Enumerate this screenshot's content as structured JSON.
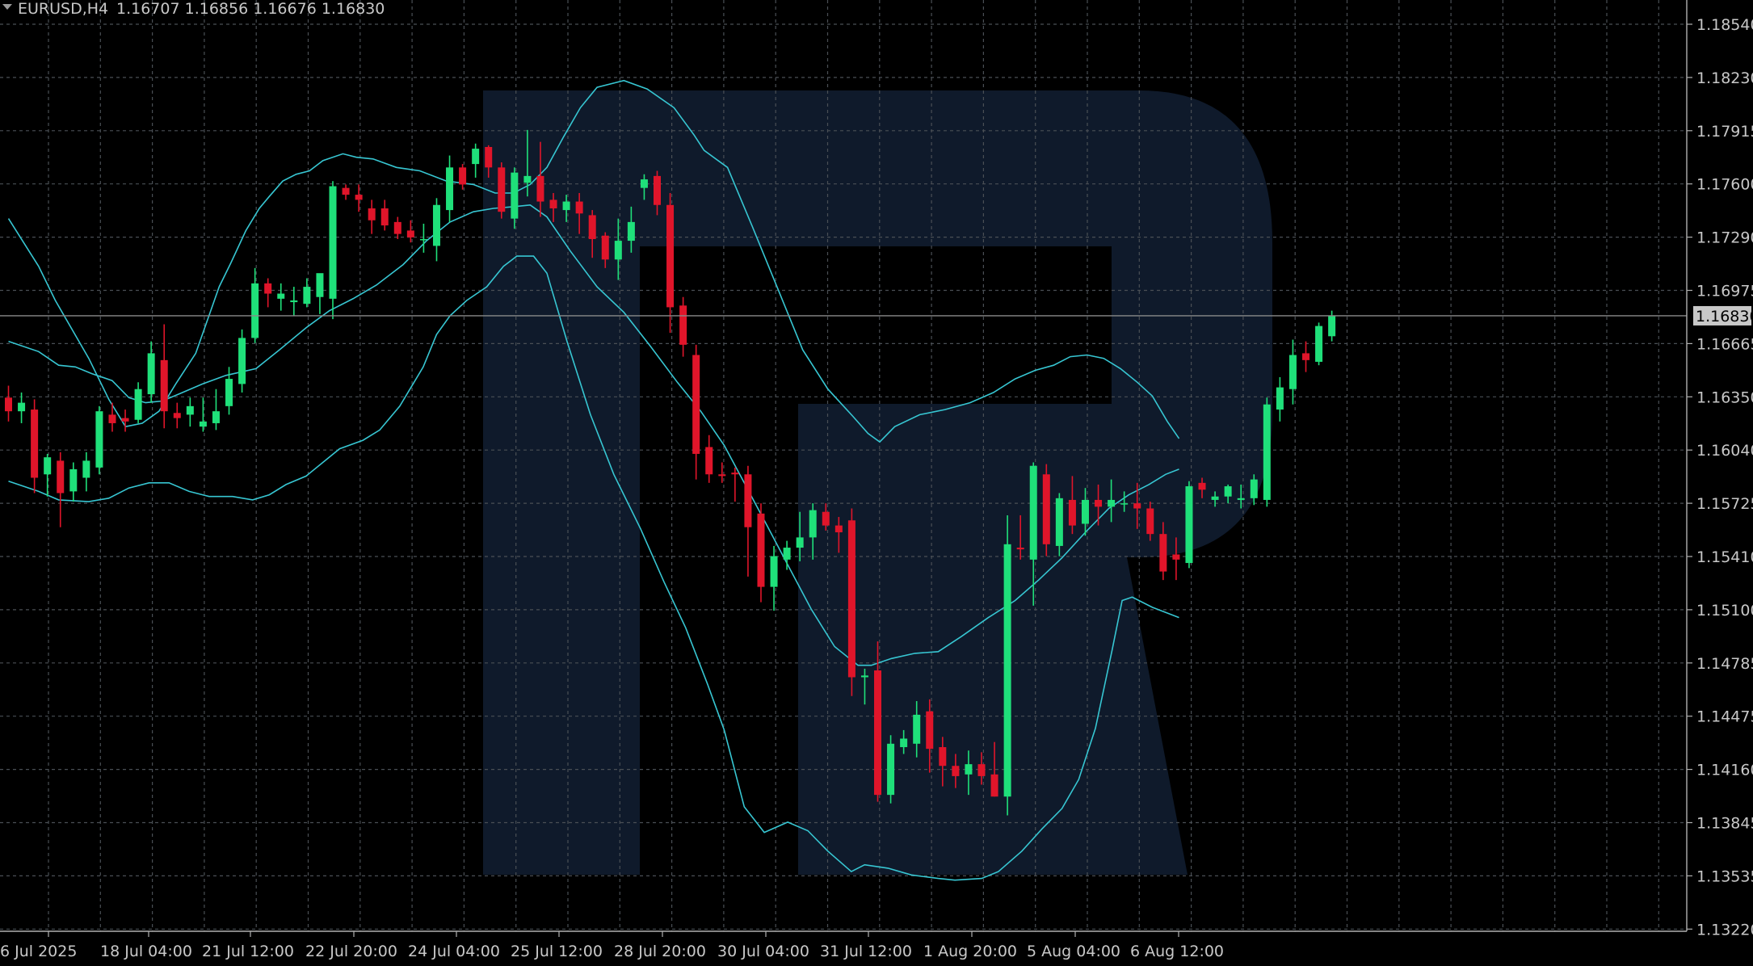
{
  "header": {
    "symbol": "EURUSD,H4",
    "ohlc": "1.16707 1.16856 1.16676 1.16830"
  },
  "colors": {
    "background": "#000000",
    "grid": "#4a4f55",
    "bull": "#1fe07a",
    "bear": "#e0152a",
    "bands": "#37c6d2",
    "watermark": "#0f1a2b",
    "axis_text": "#c8c8c8",
    "current_line": "#8a8a8a",
    "current_tag": "#c8c8c8"
  },
  "icons": {
    "header": "triangle-down-icon",
    "watermark": "broker-logo-watermark"
  },
  "chart_data": {
    "type": "candlestick",
    "symbol": "EURUSD",
    "timeframe": "H4",
    "ylim": [
      1.1322,
      1.1854
    ],
    "y_ticks": [
      "1.18540",
      "1.18230",
      "1.17915",
      "1.17600",
      "1.17290",
      "1.16975",
      "1.16665",
      "1.16350",
      "1.16040",
      "1.15725",
      "1.15410",
      "1.15100",
      "1.14785",
      "1.14475",
      "1.14160",
      "1.13845",
      "1.13535",
      "1.13220"
    ],
    "x_ticks": [
      "6 Jul 2025",
      "18 Jul 04:00",
      "21 Jul 12:00",
      "22 Jul 20:00",
      "24 Jul 04:00",
      "25 Jul 12:00",
      "28 Jul 20:00",
      "30 Jul 04:00",
      "31 Jul 12:00",
      "1 Aug 20:00",
      "5 Aug 04:00",
      "6 Aug 12:00"
    ],
    "current_price": "1.16830",
    "candles": [
      [
        1.1635,
        1.1642,
        1.1621,
        1.1627
      ],
      [
        1.1627,
        1.1638,
        1.162,
        1.1632
      ],
      [
        1.1628,
        1.1634,
        1.1579,
        1.1588
      ],
      [
        1.159,
        1.1602,
        1.1577,
        1.16
      ],
      [
        1.1598,
        1.1603,
        1.1559,
        1.1579
      ],
      [
        1.158,
        1.1597,
        1.1574,
        1.1593
      ],
      [
        1.1588,
        1.1603,
        1.158,
        1.1598
      ],
      [
        1.1594,
        1.163,
        1.159,
        1.1627
      ],
      [
        1.1625,
        1.1632,
        1.1615,
        1.162
      ],
      [
        1.1623,
        1.1628,
        1.1615,
        1.1621
      ],
      [
        1.1622,
        1.1644,
        1.162,
        1.164
      ],
      [
        1.1637,
        1.1668,
        1.1632,
        1.1661
      ],
      [
        1.1657,
        1.1678,
        1.1617,
        1.1627
      ],
      [
        1.1626,
        1.1632,
        1.1617,
        1.1623
      ],
      [
        1.1625,
        1.1635,
        1.1618,
        1.163
      ],
      [
        1.1618,
        1.1635,
        1.1615,
        1.1621
      ],
      [
        1.162,
        1.164,
        1.1616,
        1.1627
      ],
      [
        1.163,
        1.1653,
        1.1625,
        1.1646
      ],
      [
        1.1643,
        1.1675,
        1.1638,
        1.167
      ],
      [
        1.167,
        1.1711,
        1.1667,
        1.1702
      ],
      [
        1.1702,
        1.1705,
        1.1688,
        1.1696
      ],
      [
        1.1693,
        1.1702,
        1.1686,
        1.1696
      ],
      [
        1.1691,
        1.17,
        1.1683,
        1.1692
      ],
      [
        1.169,
        1.1705,
        1.1688,
        1.17
      ],
      [
        1.1694,
        1.1704,
        1.1684,
        1.1708
      ],
      [
        1.1693,
        1.1762,
        1.1681,
        1.1759
      ],
      [
        1.1758,
        1.176,
        1.1751,
        1.1754
      ],
      [
        1.1754,
        1.176,
        1.1744,
        1.1751
      ],
      [
        1.1746,
        1.1751,
        1.1731,
        1.1739
      ],
      [
        1.1746,
        1.1751,
        1.1733,
        1.1736
      ],
      [
        1.1738,
        1.1741,
        1.1728,
        1.1731
      ],
      [
        1.1733,
        1.1739,
        1.1726,
        1.1729
      ],
      [
        1.1728,
        1.1737,
        1.172,
        1.1728
      ],
      [
        1.1724,
        1.1752,
        1.1715,
        1.1748
      ],
      [
        1.1745,
        1.1777,
        1.1738,
        1.177
      ],
      [
        1.177,
        1.1772,
        1.1757,
        1.176
      ],
      [
        1.1772,
        1.1784,
        1.1764,
        1.1781
      ],
      [
        1.1782,
        1.1783,
        1.1764,
        1.177
      ],
      [
        1.177,
        1.1773,
        1.174,
        1.1744
      ],
      [
        1.174,
        1.177,
        1.1734,
        1.1767
      ],
      [
        1.1761,
        1.1792,
        1.1753,
        1.1765
      ],
      [
        1.1765,
        1.1785,
        1.1741,
        1.175
      ],
      [
        1.1751,
        1.1755,
        1.1738,
        1.1746
      ],
      [
        1.1745,
        1.1754,
        1.1738,
        1.175
      ],
      [
        1.175,
        1.1755,
        1.1731,
        1.1743
      ],
      [
        1.1742,
        1.1745,
        1.1717,
        1.1728
      ],
      [
        1.173,
        1.1732,
        1.1711,
        1.1716
      ],
      [
        1.1716,
        1.174,
        1.1704,
        1.1727
      ],
      [
        1.1727,
        1.1747,
        1.172,
        1.1738
      ],
      [
        1.1758,
        1.1766,
        1.1751,
        1.1763
      ],
      [
        1.1765,
        1.1768,
        1.1742,
        1.1748
      ],
      [
        1.1748,
        1.1755,
        1.1673,
        1.1688
      ],
      [
        1.1689,
        1.1694,
        1.1659,
        1.1666
      ],
      [
        1.166,
        1.1666,
        1.1587,
        1.1602
      ],
      [
        1.1606,
        1.1613,
        1.1585,
        1.159
      ],
      [
        1.159,
        1.1597,
        1.1585,
        1.1589
      ],
      [
        1.1591,
        1.1594,
        1.1574,
        1.159
      ],
      [
        1.159,
        1.1595,
        1.153,
        1.1559
      ],
      [
        1.1567,
        1.1573,
        1.1515,
        1.1524
      ],
      [
        1.1524,
        1.1548,
        1.151,
        1.1542
      ],
      [
        1.154,
        1.1551,
        1.1534,
        1.1547
      ],
      [
        1.1547,
        1.1568,
        1.1539,
        1.1553
      ],
      [
        1.1553,
        1.1573,
        1.154,
        1.1569
      ],
      [
        1.1568,
        1.1573,
        1.1557,
        1.156
      ],
      [
        1.156,
        1.1565,
        1.1544,
        1.1556
      ],
      [
        1.1563,
        1.157,
        1.146,
        1.1471
      ],
      [
        1.1471,
        1.1476,
        1.1455,
        1.1472
      ],
      [
        1.1475,
        1.1492,
        1.1398,
        1.1402
      ],
      [
        1.1402,
        1.1437,
        1.1397,
        1.1432
      ],
      [
        1.143,
        1.144,
        1.1426,
        1.1435
      ],
      [
        1.1432,
        1.1457,
        1.1424,
        1.1449
      ],
      [
        1.1451,
        1.1458,
        1.1415,
        1.1429
      ],
      [
        1.143,
        1.1436,
        1.1407,
        1.1419
      ],
      [
        1.1419,
        1.1426,
        1.1406,
        1.1413
      ],
      [
        1.1414,
        1.1428,
        1.1402,
        1.142
      ],
      [
        1.142,
        1.1427,
        1.1408,
        1.1413
      ],
      [
        1.1414,
        1.1433,
        1.1401,
        1.1401
      ],
      [
        1.1401,
        1.1566,
        1.139,
        1.1549
      ],
      [
        1.1547,
        1.1566,
        1.154,
        1.1546
      ],
      [
        1.154,
        1.1597,
        1.1513,
        1.1595
      ],
      [
        1.159,
        1.1596,
        1.1542,
        1.1549
      ],
      [
        1.1548,
        1.1579,
        1.1542,
        1.1576
      ],
      [
        1.1575,
        1.1589,
        1.1555,
        1.156
      ],
      [
        1.1561,
        1.1582,
        1.1554,
        1.1575
      ],
      [
        1.1575,
        1.1584,
        1.156,
        1.1571
      ],
      [
        1.1571,
        1.1587,
        1.1562,
        1.1575
      ],
      [
        1.1573,
        1.158,
        1.1568,
        1.1573
      ],
      [
        1.1573,
        1.1585,
        1.1558,
        1.157
      ],
      [
        1.157,
        1.1574,
        1.1551,
        1.1555
      ],
      [
        1.1555,
        1.1562,
        1.1528,
        1.1533
      ],
      [
        1.1543,
        1.1553,
        1.1528,
        1.154
      ],
      [
        1.1538,
        1.1586,
        1.1535,
        1.1583
      ],
      [
        1.1585,
        1.1588,
        1.1576,
        1.1581
      ],
      [
        1.1575,
        1.158,
        1.1571,
        1.1577
      ],
      [
        1.1577,
        1.1584,
        1.1573,
        1.1583
      ],
      [
        1.1575,
        1.1584,
        1.157,
        1.1576
      ],
      [
        1.1576,
        1.159,
        1.1572,
        1.1587
      ],
      [
        1.1575,
        1.1635,
        1.1571,
        1.1631
      ],
      [
        1.1628,
        1.1647,
        1.1621,
        1.1641
      ],
      [
        1.164,
        1.1669,
        1.1631,
        1.166
      ],
      [
        1.1661,
        1.1668,
        1.165,
        1.1657
      ],
      [
        1.1656,
        1.1679,
        1.1654,
        1.1677
      ],
      [
        1.1671,
        1.1686,
        1.1668,
        1.1683
      ]
    ],
    "bands": {
      "upper": [
        [
          0,
          1.174
        ],
        [
          18,
          1.1712
        ],
        [
          28,
          1.1692
        ],
        [
          48,
          1.1658
        ],
        [
          60,
          1.1634
        ],
        [
          70,
          1.1618
        ],
        [
          80,
          1.162
        ],
        [
          90,
          1.1627
        ],
        [
          100,
          1.1643
        ],
        [
          112,
          1.1661
        ],
        [
          126,
          1.17
        ],
        [
          133,
          1.1714
        ],
        [
          142,
          1.1733
        ],
        [
          150,
          1.1746
        ],
        [
          156,
          1.1753
        ],
        [
          164,
          1.1762
        ],
        [
          172,
          1.1766
        ],
        [
          180,
          1.1768
        ],
        [
          188,
          1.1774
        ],
        [
          200,
          1.1778
        ],
        [
          208,
          1.1776
        ],
        [
          218,
          1.1775
        ],
        [
          232,
          1.177
        ],
        [
          246,
          1.1768
        ],
        [
          262,
          1.1762
        ],
        [
          278,
          1.176
        ],
        [
          291,
          1.1755
        ],
        [
          302,
          1.1755
        ],
        [
          312,
          1.176
        ],
        [
          322,
          1.177
        ],
        [
          332,
          1.1788
        ],
        [
          342,
          1.1805
        ],
        [
          352,
          1.1817
        ],
        [
          368,
          1.1821
        ],
        [
          382,
          1.1816
        ],
        [
          398,
          1.1805
        ],
        [
          410,
          1.1789
        ],
        [
          416,
          1.178
        ],
        [
          430,
          1.177
        ],
        [
          445,
          1.1735
        ],
        [
          460,
          1.1699
        ],
        [
          475,
          1.1663
        ],
        [
          490,
          1.164
        ],
        [
          505,
          1.1624
        ],
        [
          514,
          1.1614
        ],
        [
          521,
          1.1609
        ],
        [
          530,
          1.1618
        ],
        [
          545,
          1.1625
        ],
        [
          560,
          1.1628
        ],
        [
          575,
          1.1632
        ],
        [
          589,
          1.1638
        ],
        [
          602,
          1.1646
        ],
        [
          614,
          1.1651
        ],
        [
          625,
          1.1654
        ],
        [
          635,
          1.1659
        ],
        [
          645,
          1.166
        ],
        [
          655,
          1.1658
        ],
        [
          665,
          1.1652
        ],
        [
          675,
          1.1644
        ],
        [
          684,
          1.1636
        ],
        [
          693,
          1.1621
        ],
        [
          700,
          1.1611
        ]
      ],
      "middle": [
        [
          0,
          1.1668
        ],
        [
          18,
          1.1662
        ],
        [
          30,
          1.1654
        ],
        [
          40,
          1.1653
        ],
        [
          50,
          1.1649
        ],
        [
          62,
          1.1645
        ],
        [
          72,
          1.1635
        ],
        [
          82,
          1.1632
        ],
        [
          92,
          1.1633
        ],
        [
          104,
          1.1638
        ],
        [
          116,
          1.1643
        ],
        [
          130,
          1.1648
        ],
        [
          148,
          1.1652
        ],
        [
          162,
          1.1663
        ],
        [
          178,
          1.1676
        ],
        [
          192,
          1.1686
        ],
        [
          206,
          1.1693
        ],
        [
          220,
          1.1701
        ],
        [
          236,
          1.1713
        ],
        [
          250,
          1.1727
        ],
        [
          264,
          1.1738
        ],
        [
          278,
          1.1744
        ],
        [
          290,
          1.1746
        ],
        [
          302,
          1.1747
        ],
        [
          312,
          1.1748
        ],
        [
          322,
          1.1741
        ],
        [
          336,
          1.1721
        ],
        [
          352,
          1.17
        ],
        [
          368,
          1.1685
        ],
        [
          384,
          1.1665
        ],
        [
          400,
          1.1644
        ],
        [
          414,
          1.1627
        ],
        [
          428,
          1.1607
        ],
        [
          440,
          1.1585
        ],
        [
          452,
          1.1563
        ],
        [
          466,
          1.1537
        ],
        [
          480,
          1.1511
        ],
        [
          494,
          1.1489
        ],
        [
          508,
          1.1478
        ],
        [
          516,
          1.1478
        ],
        [
          528,
          1.1482
        ],
        [
          542,
          1.1485
        ],
        [
          556,
          1.1486
        ],
        [
          570,
          1.1495
        ],
        [
          586,
          1.1506
        ],
        [
          602,
          1.1516
        ],
        [
          616,
          1.1528
        ],
        [
          630,
          1.1541
        ],
        [
          644,
          1.1556
        ],
        [
          658,
          1.157
        ],
        [
          670,
          1.1578
        ],
        [
          682,
          1.1584
        ],
        [
          692,
          1.159
        ],
        [
          700,
          1.1593
        ]
      ],
      "lower": [
        [
          0,
          1.1586
        ],
        [
          18,
          1.158
        ],
        [
          30,
          1.1575
        ],
        [
          48,
          1.1574
        ],
        [
          60,
          1.1576
        ],
        [
          72,
          1.1582
        ],
        [
          84,
          1.1585
        ],
        [
          96,
          1.1585
        ],
        [
          108,
          1.158
        ],
        [
          120,
          1.1577
        ],
        [
          134,
          1.1577
        ],
        [
          146,
          1.1575
        ],
        [
          156,
          1.1578
        ],
        [
          166,
          1.1584
        ],
        [
          178,
          1.1589
        ],
        [
          188,
          1.1597
        ],
        [
          198,
          1.1605
        ],
        [
          212,
          1.161
        ],
        [
          222,
          1.1616
        ],
        [
          234,
          1.163
        ],
        [
          248,
          1.1653
        ],
        [
          256,
          1.1672
        ],
        [
          264,
          1.1683
        ],
        [
          274,
          1.1692
        ],
        [
          286,
          1.17
        ],
        [
          296,
          1.1712
        ],
        [
          304,
          1.1718
        ],
        [
          314,
          1.1718
        ],
        [
          322,
          1.1708
        ],
        [
          334,
          1.1668
        ],
        [
          348,
          1.1625
        ],
        [
          362,
          1.159
        ],
        [
          378,
          1.1558
        ],
        [
          392,
          1.1527
        ],
        [
          405,
          1.15
        ],
        [
          418,
          1.1467
        ],
        [
          428,
          1.144
        ],
        [
          440,
          1.1395
        ],
        [
          452,
          1.138
        ],
        [
          466,
          1.1386
        ],
        [
          478,
          1.1381
        ],
        [
          490,
          1.1369
        ],
        [
          504,
          1.1357
        ],
        [
          512,
          1.1361
        ],
        [
          526,
          1.1359
        ],
        [
          540,
          1.1355
        ],
        [
          556,
          1.1353
        ],
        [
          566,
          1.1352
        ],
        [
          582,
          1.1353
        ],
        [
          592,
          1.1357
        ],
        [
          606,
          1.1369
        ],
        [
          618,
          1.1382
        ],
        [
          630,
          1.1394
        ],
        [
          640,
          1.1411
        ],
        [
          650,
          1.1441
        ],
        [
          660,
          1.1487
        ],
        [
          666,
          1.1516
        ],
        [
          672,
          1.1518
        ],
        [
          684,
          1.1512
        ],
        [
          700,
          1.1506
        ]
      ]
    }
  }
}
